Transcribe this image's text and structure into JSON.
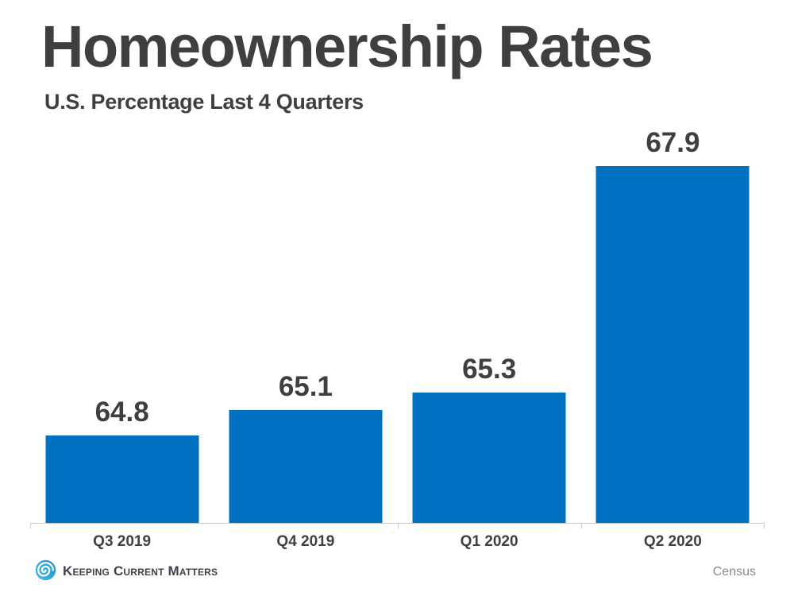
{
  "header": {
    "title": "Homeownership Rates",
    "subtitle": "U.S. Percentage Last 4 Quarters"
  },
  "chart_data": {
    "type": "bar",
    "title": "Homeownership Rates",
    "subtitle": "U.S. Percentage Last 4 Quarters",
    "categories": [
      "Q3 2019",
      "Q4 2019",
      "Q1 2020",
      "Q2 2020"
    ],
    "values": [
      64.8,
      65.1,
      65.3,
      67.9
    ],
    "data_labels": [
      "64.8",
      "65.1",
      "65.3",
      "67.9"
    ],
    "xlabel": "",
    "ylabel": "",
    "ylim": [
      63.8,
      68.0
    ],
    "grid": false,
    "legend": false,
    "bar_color": "#0070c0",
    "label_color": "#3f3f3f",
    "axis_color": "#c9c9c9"
  },
  "footer": {
    "brand": "Keeping Current Matters",
    "source": "Census",
    "logo_icon": "kcm-swirl-icon",
    "logo_blue_light": "#45bcea",
    "logo_blue_dark": "#1593d2"
  }
}
